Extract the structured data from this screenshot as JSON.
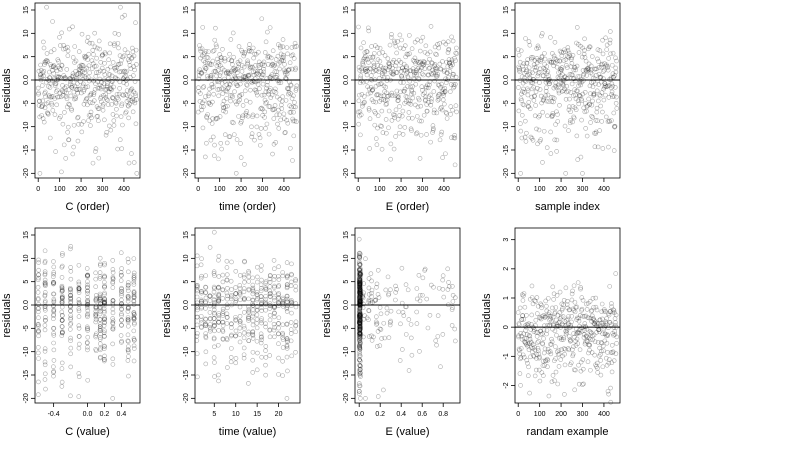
{
  "chart_data": [
    {
      "type": "scatter",
      "xlabel": "C (order)",
      "ylabel": "residuals",
      "xlim": [
        -15,
        475
      ],
      "ylim": [
        -21,
        16.5
      ],
      "xticks": [
        0,
        100,
        200,
        300,
        400
      ],
      "xtick_labels": [
        "0",
        "100",
        "200",
        "300",
        "400"
      ],
      "yticks": [
        -20,
        -15,
        -10,
        -5,
        0,
        5,
        10,
        15
      ],
      "ytick_labels": [
        "-20",
        "-15",
        "-10",
        "-5",
        "0.0",
        "5",
        "10",
        "15"
      ],
      "reference_line_y": 0,
      "x_kind": "index",
      "n_points": 460,
      "seed": 11,
      "grid": false,
      "legend": "none"
    },
    {
      "type": "scatter",
      "xlabel": "time (order)",
      "ylabel": "residuals",
      "xlim": [
        -15,
        475
      ],
      "ylim": [
        -21,
        16.5
      ],
      "xticks": [
        0,
        100,
        200,
        300,
        400
      ],
      "xtick_labels": [
        "0",
        "100",
        "200",
        "300",
        "400"
      ],
      "yticks": [
        -20,
        -15,
        -10,
        -5,
        0,
        5,
        10,
        15
      ],
      "ytick_labels": [
        "-20",
        "-15",
        "-10",
        "-5",
        "0.0",
        "5",
        "10",
        "15"
      ],
      "reference_line_y": 0,
      "x_kind": "index",
      "n_points": 460,
      "seed": 23,
      "grid": false,
      "legend": "none"
    },
    {
      "type": "scatter",
      "xlabel": "E (order)",
      "ylabel": "residuals",
      "xlim": [
        -15,
        475
      ],
      "ylim": [
        -21,
        16.5
      ],
      "xticks": [
        0,
        100,
        200,
        300,
        400
      ],
      "xtick_labels": [
        "0",
        "100",
        "200",
        "300",
        "400"
      ],
      "yticks": [
        -20,
        -15,
        -10,
        -5,
        0,
        5,
        10,
        15
      ],
      "ytick_labels": [
        "-20",
        "-15",
        "-10",
        "-5",
        "0.0",
        "5",
        "10",
        "15"
      ],
      "reference_line_y": 0,
      "x_kind": "index",
      "n_points": 460,
      "seed": 37,
      "grid": false,
      "legend": "none"
    },
    {
      "type": "scatter",
      "xlabel": "sample index",
      "ylabel": "residuals",
      "xlim": [
        -15,
        475
      ],
      "ylim": [
        -21,
        16.5
      ],
      "xticks": [
        0,
        100,
        200,
        300,
        400
      ],
      "xtick_labels": [
        "0",
        "100",
        "200",
        "300",
        "400"
      ],
      "yticks": [
        -20,
        -15,
        -10,
        -5,
        0,
        5,
        10,
        15
      ],
      "ytick_labels": [
        "-20",
        "-15",
        "-10",
        "-5",
        "0.0",
        "5",
        "10",
        "15"
      ],
      "reference_line_y": 0,
      "x_kind": "index",
      "n_points": 460,
      "seed": 53,
      "grid": false,
      "legend": "none"
    },
    {
      "type": "scatter",
      "xlabel": "C (value)",
      "ylabel": "residuals",
      "xlim": [
        -0.62,
        0.62
      ],
      "ylim": [
        -21,
        16.5
      ],
      "xticks": [
        -0.4,
        0.0,
        0.2,
        0.4
      ],
      "xtick_labels": [
        "-0.4",
        "0.0",
        "0.2",
        "0.4"
      ],
      "yticks": [
        -20,
        -15,
        -10,
        -5,
        0,
        5,
        10,
        15
      ],
      "ytick_labels": [
        "-20",
        "-15",
        "-10",
        "-5",
        "0.0",
        "5",
        "10",
        "15"
      ],
      "reference_line_y": 0,
      "x_kind": "clusters",
      "x_clusters": [
        -0.58,
        -0.5,
        -0.4,
        -0.3,
        -0.2,
        -0.1,
        0.0,
        0.1,
        0.15,
        0.2,
        0.3,
        0.4,
        0.48,
        0.55
      ],
      "n_points": 460,
      "seed": 71,
      "grid": false,
      "legend": "none"
    },
    {
      "type": "scatter",
      "xlabel": "time (value)",
      "ylabel": "residuals",
      "xlim": [
        0.5,
        25
      ],
      "ylim": [
        -21,
        16.5
      ],
      "xticks": [
        5,
        10,
        15,
        20
      ],
      "xtick_labels": [
        "5",
        "10",
        "15",
        "20"
      ],
      "yticks": [
        -20,
        -15,
        -10,
        -5,
        0,
        5,
        10,
        15
      ],
      "ytick_labels": [
        "-20",
        "-15",
        "-10",
        "-5",
        "0.0",
        "5",
        "10",
        "15"
      ],
      "reference_line_y": 0,
      "x_kind": "clusters",
      "x_clusters": [
        1,
        2,
        3,
        4,
        5,
        6,
        7,
        8,
        9,
        10,
        11,
        12,
        13,
        14,
        15,
        16,
        17,
        18,
        19,
        20,
        21,
        22,
        23,
        24
      ],
      "n_points": 460,
      "seed": 89,
      "grid": false,
      "legend": "none"
    },
    {
      "type": "scatter",
      "xlabel": "E (value)",
      "ylabel": "residuals",
      "xlim": [
        -0.04,
        0.96
      ],
      "ylim": [
        -21,
        16.5
      ],
      "xticks": [
        0.0,
        0.2,
        0.4,
        0.6,
        0.8
      ],
      "xtick_labels": [
        "0.0",
        "0.2",
        "0.4",
        "0.6",
        "0.8"
      ],
      "yticks": [
        -20,
        -15,
        -10,
        -5,
        0,
        5,
        10,
        15
      ],
      "ytick_labels": [
        "-20",
        "-15",
        "-10",
        "-5",
        "0.0",
        "5",
        "10",
        "15"
      ],
      "reference_line_y": 0,
      "x_kind": "skewed",
      "n_points": 460,
      "seed": 97,
      "grid": false,
      "legend": "none"
    },
    {
      "type": "scatter",
      "xlabel": "randam example",
      "ylabel": "residuals",
      "xlim": [
        -15,
        475
      ],
      "ylim": [
        -2.6,
        3.4
      ],
      "xticks": [
        0,
        100,
        200,
        300,
        400
      ],
      "xtick_labels": [
        "0",
        "100",
        "200",
        "300",
        "400"
      ],
      "yticks": [
        -2,
        -1,
        0,
        1,
        2,
        3
      ],
      "ytick_labels": [
        "-2",
        "-1",
        "0",
        "1",
        "2",
        "3"
      ],
      "reference_line_y": 0,
      "x_kind": "index",
      "y_scale": 0.13,
      "n_points": 460,
      "seed": 131,
      "grid": false,
      "legend": "none"
    }
  ]
}
